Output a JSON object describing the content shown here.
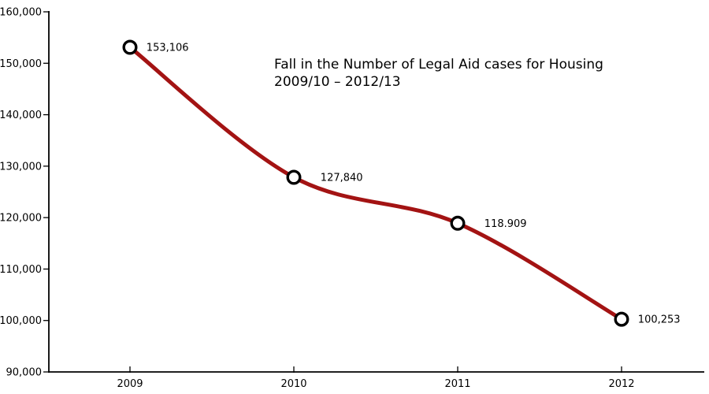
{
  "page": {
    "background": "#FFFFFF"
  },
  "chart_data": {
    "type": "line",
    "title": "Fall in the Number of Legal Aid cases for Housing 2009/10 – 2012/13",
    "title_lines": [
      "Fall in the Number of Legal Aid cases for Housing",
      "2009/10 – 2012/13"
    ],
    "categories": [
      "2009",
      "2010",
      "2011",
      "2012"
    ],
    "series": [
      {
        "name": "Legal Aid cases for Housing",
        "values": [
          153106,
          127840,
          118909,
          100253
        ]
      }
    ],
    "point_labels": [
      "153,106",
      "127,840",
      "118.909",
      "100,253"
    ],
    "ylim": [
      90000,
      160000
    ],
    "ytick_step": 10000,
    "ytick_labels": [
      "90,000",
      "100,000",
      "110,000",
      "120,000",
      "130,000",
      "140,000",
      "150,000",
      "160,000"
    ],
    "xlabel": "",
    "ylabel": "",
    "grid": false,
    "legend": "none",
    "line_smoothing": "spline",
    "colors": {
      "line": "#A31313",
      "marker_fill": "#FFFFFF",
      "marker_stroke": "#000000",
      "axis": "#000000",
      "text": "#000000"
    }
  }
}
